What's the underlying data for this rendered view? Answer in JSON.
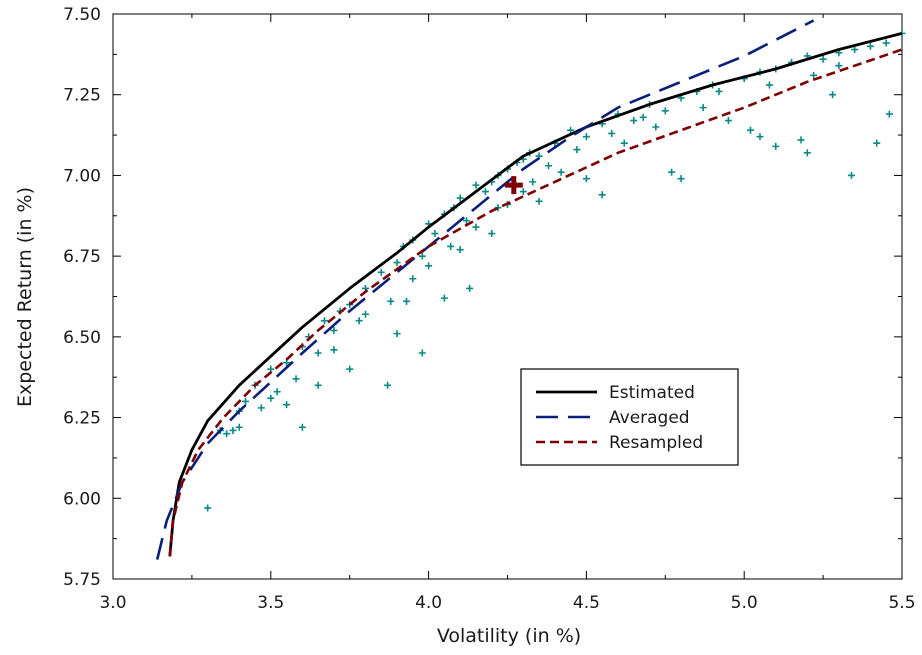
{
  "chart_data": {
    "type": "line",
    "xlabel": "Volatility (in %)",
    "ylabel": "Expected Return (in %)",
    "xlim": [
      3.0,
      5.5
    ],
    "ylim": [
      5.75,
      7.5
    ],
    "x_ticks": [
      "3.0",
      "3.5",
      "4.0",
      "4.5",
      "5.0",
      "5.5"
    ],
    "y_ticks": [
      "5.75",
      "6.00",
      "6.25",
      "6.50",
      "6.75",
      "7.00",
      "7.25",
      "7.50"
    ],
    "grid": false,
    "legend_position": "lower-right",
    "series": [
      {
        "name": "Estimated",
        "style": "solid",
        "color": "#000000",
        "points": [
          [
            3.18,
            5.82
          ],
          [
            3.19,
            5.93
          ],
          [
            3.21,
            6.05
          ],
          [
            3.25,
            6.15
          ],
          [
            3.3,
            6.24
          ],
          [
            3.4,
            6.35
          ],
          [
            3.5,
            6.44
          ],
          [
            3.6,
            6.53
          ],
          [
            3.75,
            6.65
          ],
          [
            3.9,
            6.76
          ],
          [
            4.0,
            6.84
          ],
          [
            4.15,
            6.95
          ],
          [
            4.3,
            7.06
          ],
          [
            4.5,
            7.15
          ],
          [
            4.7,
            7.22
          ],
          [
            4.9,
            7.28
          ],
          [
            5.1,
            7.33
          ],
          [
            5.3,
            7.39
          ],
          [
            5.5,
            7.44
          ]
        ]
      },
      {
        "name": "Averaged",
        "style": "dashed",
        "color": "#0a1f7a",
        "points": [
          [
            3.14,
            5.81
          ],
          [
            3.17,
            5.93
          ],
          [
            3.22,
            6.05
          ],
          [
            3.3,
            6.17
          ],
          [
            3.4,
            6.27
          ],
          [
            3.5,
            6.36
          ],
          [
            3.6,
            6.45
          ],
          [
            3.75,
            6.58
          ],
          [
            3.9,
            6.7
          ],
          [
            4.0,
            6.78
          ],
          [
            4.15,
            6.9
          ],
          [
            4.3,
            7.02
          ],
          [
            4.45,
            7.12
          ],
          [
            4.6,
            7.21
          ],
          [
            4.8,
            7.29
          ],
          [
            5.0,
            7.37
          ],
          [
            5.22,
            7.48
          ]
        ]
      },
      {
        "name": "Resampled",
        "style": "dash-dot",
        "color": "#7f0000",
        "points": [
          [
            3.18,
            5.82
          ],
          [
            3.19,
            5.93
          ],
          [
            3.22,
            6.05
          ],
          [
            3.27,
            6.15
          ],
          [
            3.35,
            6.25
          ],
          [
            3.45,
            6.35
          ],
          [
            3.55,
            6.43
          ],
          [
            3.65,
            6.52
          ],
          [
            3.8,
            6.64
          ],
          [
            4.0,
            6.78
          ],
          [
            4.2,
            6.89
          ],
          [
            4.4,
            6.98
          ],
          [
            4.6,
            7.07
          ],
          [
            4.8,
            7.14
          ],
          [
            5.0,
            7.21
          ],
          [
            5.2,
            7.29
          ],
          [
            5.35,
            7.34
          ],
          [
            5.5,
            7.39
          ]
        ]
      }
    ],
    "scatter": {
      "marker": "+",
      "color": "#0a8a84",
      "points": [
        [
          3.3,
          5.97
        ],
        [
          3.34,
          6.21
        ],
        [
          3.36,
          6.2
        ],
        [
          3.38,
          6.21
        ],
        [
          3.4,
          6.22
        ],
        [
          3.42,
          6.3
        ],
        [
          3.45,
          6.35
        ],
        [
          3.47,
          6.28
        ],
        [
          3.5,
          6.4
        ],
        [
          3.52,
          6.33
        ],
        [
          3.55,
          6.42
        ],
        [
          3.58,
          6.37
        ],
        [
          3.6,
          6.47
        ],
        [
          3.62,
          6.5
        ],
        [
          3.65,
          6.45
        ],
        [
          3.67,
          6.55
        ],
        [
          3.7,
          6.52
        ],
        [
          3.72,
          6.58
        ],
        [
          3.75,
          6.6
        ],
        [
          3.78,
          6.55
        ],
        [
          3.8,
          6.65
        ],
        [
          3.85,
          6.7
        ],
        [
          3.88,
          6.61
        ],
        [
          3.9,
          6.73
        ],
        [
          3.92,
          6.78
        ],
        [
          3.95,
          6.8
        ],
        [
          3.98,
          6.75
        ],
        [
          4.0,
          6.85
        ],
        [
          4.02,
          6.82
        ],
        [
          4.05,
          6.88
        ],
        [
          4.08,
          6.9
        ],
        [
          4.1,
          6.93
        ],
        [
          4.12,
          6.86
        ],
        [
          4.15,
          6.97
        ],
        [
          4.18,
          6.95
        ],
        [
          4.2,
          6.98
        ],
        [
          4.22,
          7.0
        ],
        [
          4.25,
          7.02
        ],
        [
          4.28,
          7.04
        ],
        [
          4.3,
          7.05
        ],
        [
          4.32,
          7.07
        ],
        [
          4.35,
          7.06
        ],
        [
          4.4,
          7.1
        ],
        [
          4.45,
          7.14
        ],
        [
          4.5,
          7.12
        ],
        [
          4.55,
          7.16
        ],
        [
          4.6,
          7.19
        ],
        [
          4.65,
          7.17
        ],
        [
          4.7,
          7.22
        ],
        [
          4.75,
          7.2
        ],
        [
          4.8,
          7.24
        ],
        [
          4.85,
          7.26
        ],
        [
          4.9,
          7.28
        ],
        [
          5.0,
          7.3
        ],
        [
          5.05,
          7.32
        ],
        [
          5.1,
          7.33
        ],
        [
          5.15,
          7.35
        ],
        [
          5.2,
          7.37
        ],
        [
          5.25,
          7.36
        ],
        [
          5.3,
          7.38
        ],
        [
          5.35,
          7.39
        ],
        [
          5.4,
          7.4
        ],
        [
          5.45,
          7.41
        ],
        [
          5.5,
          7.44
        ],
        [
          3.6,
          6.22
        ],
        [
          3.65,
          6.35
        ],
        [
          3.75,
          6.4
        ],
        [
          3.87,
          6.35
        ],
        [
          3.9,
          6.51
        ],
        [
          3.93,
          6.61
        ],
        [
          3.98,
          6.45
        ],
        [
          4.05,
          6.62
        ],
        [
          4.1,
          6.77
        ],
        [
          4.13,
          6.65
        ],
        [
          4.2,
          6.82
        ],
        [
          4.22,
          6.9
        ],
        [
          4.3,
          6.95
        ],
        [
          4.35,
          6.92
        ],
        [
          4.42,
          7.01
        ],
        [
          4.5,
          6.99
        ],
        [
          4.55,
          6.94
        ],
        [
          4.62,
          7.1
        ],
        [
          4.77,
          7.01
        ],
        [
          4.8,
          6.99
        ],
        [
          4.95,
          7.17
        ],
        [
          5.02,
          7.14
        ],
        [
          5.05,
          7.12
        ],
        [
          5.1,
          7.09
        ],
        [
          5.18,
          7.11
        ],
        [
          5.2,
          7.07
        ],
        [
          5.28,
          7.25
        ],
        [
          5.34,
          7.0
        ],
        [
          5.42,
          7.1
        ],
        [
          5.46,
          7.19
        ],
        [
          3.4,
          6.27
        ],
        [
          3.5,
          6.31
        ],
        [
          3.55,
          6.29
        ],
        [
          3.7,
          6.46
        ],
        [
          3.8,
          6.57
        ],
        [
          3.95,
          6.68
        ],
        [
          4.0,
          6.72
        ],
        [
          4.07,
          6.78
        ],
        [
          4.15,
          6.84
        ],
        [
          4.25,
          6.91
        ],
        [
          4.33,
          6.98
        ],
        [
          4.38,
          7.03
        ],
        [
          4.47,
          7.08
        ],
        [
          4.58,
          7.13
        ],
        [
          4.68,
          7.18
        ],
        [
          4.72,
          7.15
        ],
        [
          4.87,
          7.21
        ],
        [
          4.92,
          7.26
        ],
        [
          5.08,
          7.28
        ],
        [
          5.22,
          7.31
        ],
        [
          5.3,
          7.34
        ]
      ]
    },
    "highlight_point": {
      "x": 4.27,
      "y": 6.97,
      "marker": "+",
      "color": "#7f0000"
    }
  }
}
